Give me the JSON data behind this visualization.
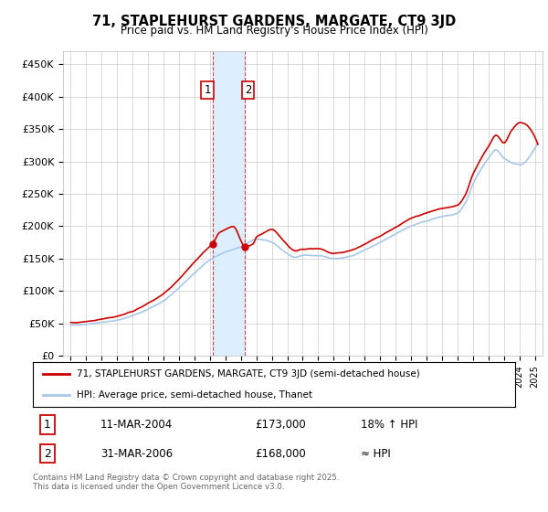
{
  "title": "71, STAPLEHURST GARDENS, MARGATE, CT9 3JD",
  "subtitle": "Price paid vs. HM Land Registry's House Price Index (HPI)",
  "ylim": [
    0,
    470000
  ],
  "yticks": [
    0,
    50000,
    100000,
    150000,
    200000,
    250000,
    300000,
    350000,
    400000,
    450000
  ],
  "ytick_labels": [
    "£0",
    "£50K",
    "£100K",
    "£150K",
    "£200K",
    "£250K",
    "£300K",
    "£350K",
    "£400K",
    "£450K"
  ],
  "hpi_color": "#a8c8e8",
  "price_color": "#cc0000",
  "vband_color": "#ddeeff",
  "vline_color": "#cc4444",
  "transaction1_x": 2004.19,
  "transaction1_price": 173000,
  "transaction2_x": 2006.25,
  "transaction2_price": 168000,
  "legend_line1": "71, STAPLEHURST GARDENS, MARGATE, CT9 3JD (semi-detached house)",
  "legend_line2": "HPI: Average price, semi-detached house, Thanet",
  "ann1_date": "11-MAR-2004",
  "ann1_price": "£173,000",
  "ann1_hpi": "18% ↑ HPI",
  "ann2_date": "31-MAR-2006",
  "ann2_price": "£168,000",
  "ann2_hpi": "≈ HPI",
  "footer": "Contains HM Land Registry data © Crown copyright and database right 2025.\nThis data is licensed under the Open Government Licence v3.0.",
  "background_color": "#ffffff",
  "grid_color": "#cccccc"
}
